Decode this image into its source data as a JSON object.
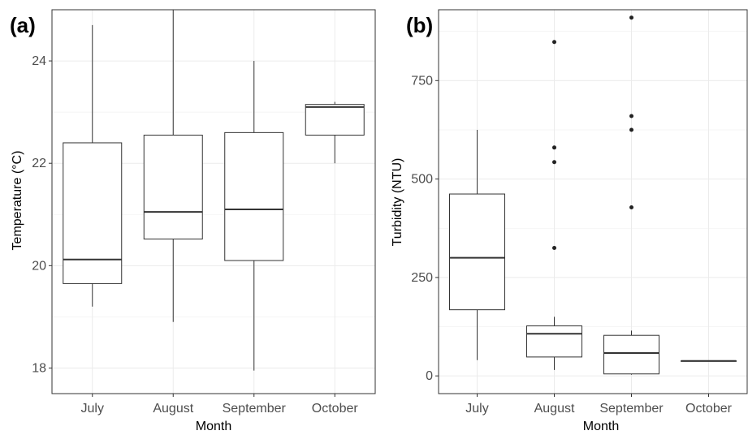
{
  "chart_data": [
    {
      "type": "box",
      "panel_label": "(a)",
      "xlabel": "Month",
      "ylabel": "Temperature (°C)",
      "categories": [
        "July",
        "August",
        "September",
        "October"
      ],
      "ylim": [
        17.5,
        25.0
      ],
      "yticks": [
        18,
        20,
        22,
        24
      ],
      "grid": true,
      "boxes": [
        {
          "min": 19.2,
          "q1": 19.65,
          "median": 20.12,
          "q3": 22.4,
          "max": 24.7,
          "outliers": []
        },
        {
          "min": 18.9,
          "q1": 20.52,
          "median": 21.05,
          "q3": 22.55,
          "max": 25.0,
          "outliers": []
        },
        {
          "min": 17.95,
          "q1": 20.1,
          "median": 21.1,
          "q3": 22.6,
          "max": 24.0,
          "outliers": []
        },
        {
          "min": 22.0,
          "q1": 22.55,
          "median": 23.1,
          "q3": 23.15,
          "max": 23.2,
          "outliers": []
        }
      ]
    },
    {
      "type": "box",
      "panel_label": "(b)",
      "xlabel": "Month",
      "ylabel": "Turbidity (NTU)",
      "categories": [
        "July",
        "August",
        "September",
        "October"
      ],
      "ylim": [
        -45,
        930
      ],
      "yticks": [
        0,
        250,
        500,
        750
      ],
      "grid": true,
      "boxes": [
        {
          "min": 40,
          "q1": 168,
          "median": 300,
          "q3": 462,
          "max": 625,
          "outliers": []
        },
        {
          "min": 15,
          "q1": 48,
          "median": 107,
          "q3": 127,
          "max": 150,
          "outliers": [
            325,
            543,
            580,
            848
          ]
        },
        {
          "min": 3,
          "q1": 5,
          "median": 58,
          "q3": 103,
          "max": 115,
          "outliers": [
            428,
            625,
            660,
            910
          ]
        },
        {
          "min": 38,
          "q1": 38,
          "median": 38,
          "q3": 38,
          "max": 38,
          "outliers": []
        }
      ]
    }
  ]
}
